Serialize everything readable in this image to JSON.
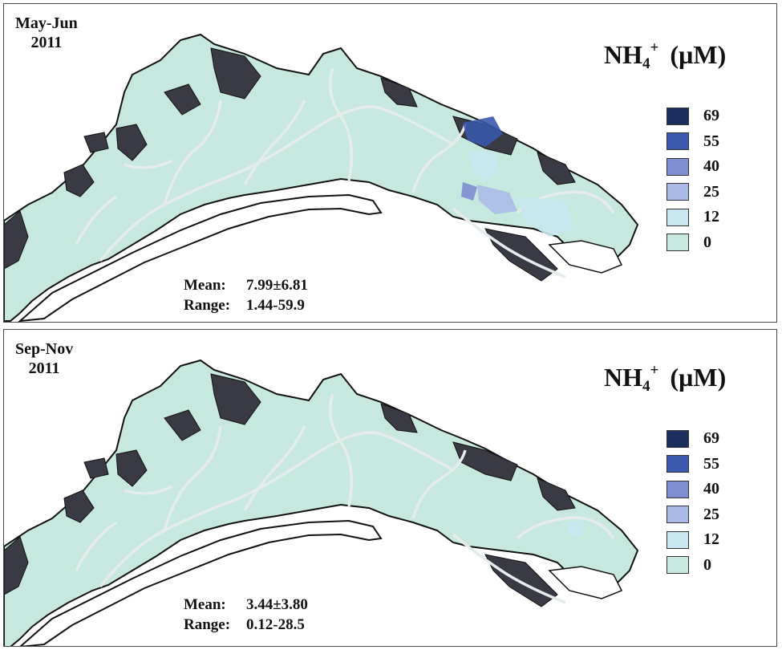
{
  "legend": {
    "title_main": "NH",
    "title_sub": "4",
    "title_sup": "+",
    "title_unit": "(µM)",
    "classes": [
      {
        "label": "69",
        "color": "#1b2f5e"
      },
      {
        "label": "55",
        "color": "#3a59ad"
      },
      {
        "label": "40",
        "color": "#7e8dd0"
      },
      {
        "label": "25",
        "color": "#aabbe6"
      },
      {
        "label": "12",
        "color": "#c9e7ef"
      },
      {
        "label": "0",
        "color": "#c6e8de"
      }
    ]
  },
  "colors": {
    "land": "#c6e8de",
    "outline": "#111111",
    "mangrove": "#3a3a44",
    "creek": "#e4ecec",
    "class_12": "#c9e7ef",
    "class_25": "#aabbe6",
    "class_40": "#7e8dd0",
    "class_55": "#3a59ad"
  },
  "panels": [
    {
      "period_line1": "May-Jun",
      "period_line2": "2011",
      "mean_label": "Mean:",
      "mean_value": "7.99±6.81",
      "range_label": "Range:",
      "range_value": "1.44-59.9"
    },
    {
      "period_line1": "Sep-Nov",
      "period_line2": "2011",
      "mean_label": "Mean:",
      "mean_value": "3.44±3.80",
      "range_label": "Range:",
      "range_value": "0.12-28.5"
    }
  ]
}
